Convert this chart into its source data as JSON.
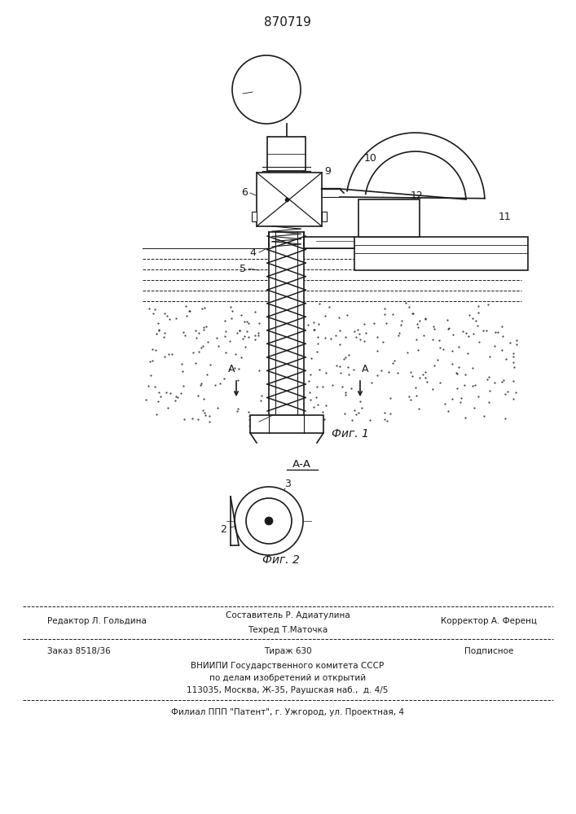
{
  "title": "870719",
  "fig1_label": "Фиг. 1",
  "fig2_label": "Фиг. 2",
  "section_label": "А-А",
  "background_color": "#ffffff",
  "line_color": "#1a1a1a",
  "footer": {
    "line1_left": "Редактор Л. Гольдина",
    "line1_center": "Составитель Р. Адиатулина",
    "line2_center": "Техред Т.Маточка",
    "line2_right": "Корректор А. Ференц",
    "line3_left": "Заказ 8518/36",
    "line3_center": "Тираж 630",
    "line3_right": "Подписное",
    "line4": "ВНИИПИ Государственного комитета СССР",
    "line5": "по делам изобретений и открытий",
    "line6": "113035, Москва, Ж-35, Раушская наб.,  д. 4/5",
    "line7": "Филиал ППП \"Патент\", г. Ужгород, ул. Проектная, 4"
  }
}
